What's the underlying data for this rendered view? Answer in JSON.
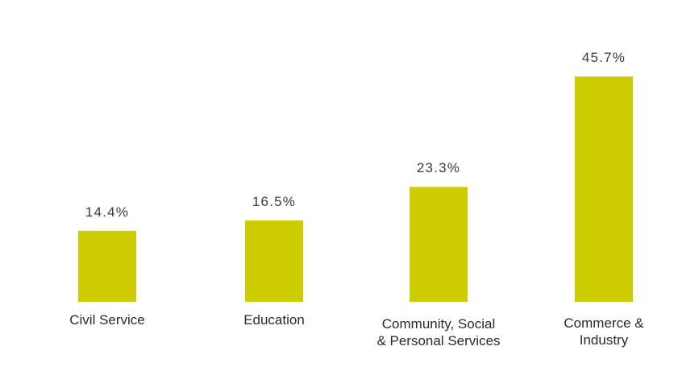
{
  "chart_data": {
    "type": "bar",
    "categories": [
      [
        "Civil Service"
      ],
      [
        "Education"
      ],
      [
        "Community, Social",
        "& Personal Services"
      ],
      [
        "Commerce &",
        "Industry"
      ]
    ],
    "values": [
      14.4,
      16.5,
      23.3,
      45.7
    ],
    "value_labels": [
      "14.4%",
      "16.5%",
      "23.3%",
      "45.7%"
    ],
    "unit": "%",
    "title": "",
    "xlabel": "",
    "ylabel": "",
    "ylim": [
      0,
      45.7
    ],
    "grid": false,
    "legend": "none",
    "bar_color": "#cccc00"
  }
}
